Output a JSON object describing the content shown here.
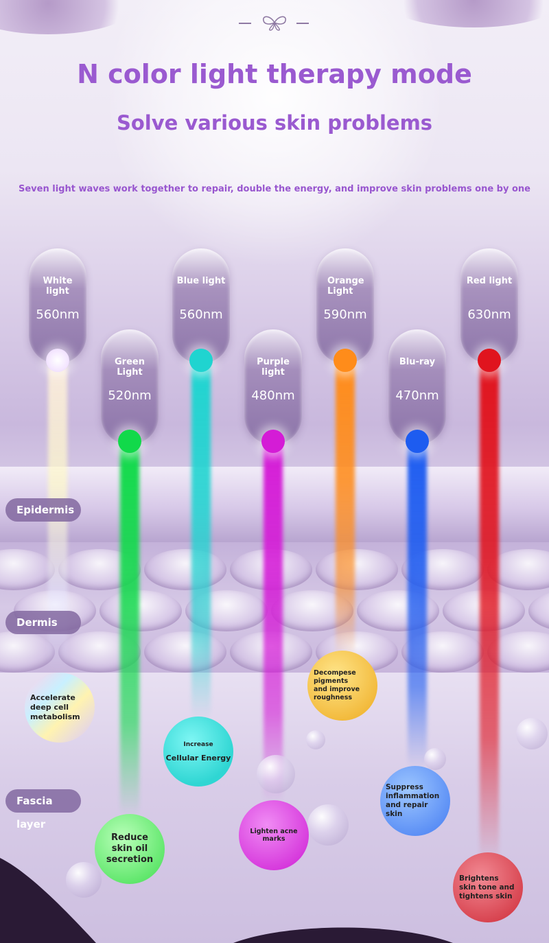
{
  "header": {
    "title": "N color light therapy mode",
    "title2": "Solve various skin problems",
    "subtitle": "Seven light waves work together to repair, double the energy, and improve skin problems one by one"
  },
  "lights": [
    {
      "name": "White light",
      "nm": "560nm",
      "color": "#ffffff"
    },
    {
      "name": "Green Light",
      "nm": "520nm",
      "color": "#11d94a"
    },
    {
      "name": "Blue light",
      "nm": "560nm",
      "color": "#1fd4d0"
    },
    {
      "name": "Purple light",
      "nm": "480nm",
      "color": "#d41cd6"
    },
    {
      "name": "Orange Light",
      "nm": "590nm",
      "color": "#ff8c1a"
    },
    {
      "name": "Blu-ray",
      "nm": "470nm",
      "color": "#1d5cf0"
    },
    {
      "name": "Red light",
      "nm": "630nm",
      "color": "#e0141e"
    }
  ],
  "layers": {
    "epidermis": "Epidermis",
    "dermis": "Dermis",
    "fascia": "Fascia layer"
  },
  "effects": {
    "white": "Accelerate deep cell metabolism",
    "blue_small": "Increase",
    "blue_main": "Cellular Energy",
    "green": "Reduce skin oil secretion",
    "purple": "Lighten acne marks",
    "orange": "Decompese pigments and improve roughness",
    "blu_ray": "Suppress inflammation and repair skin",
    "red": "Brightens skin tone and tightens skin"
  }
}
